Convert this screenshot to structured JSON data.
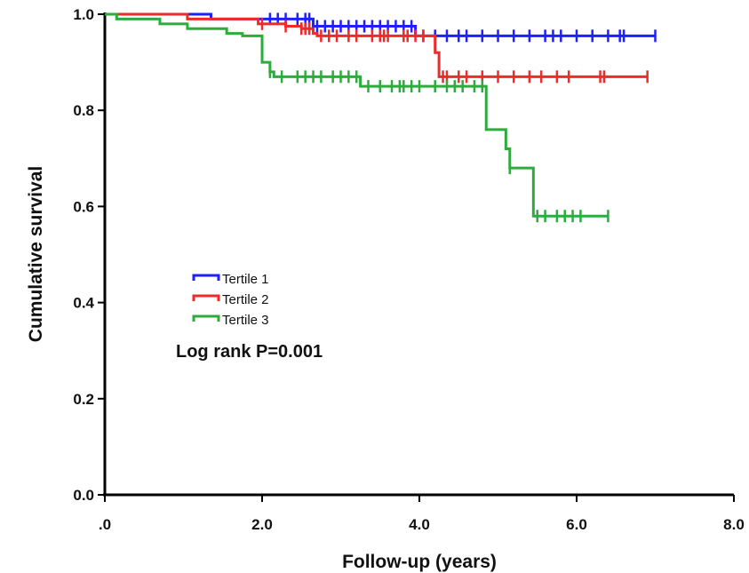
{
  "chart_data": {
    "type": "line",
    "subtype": "kaplan-meier step",
    "xlabel": "Follow-up (years)",
    "ylabel": "Cumulative survival",
    "xlim": [
      0,
      8
    ],
    "ylim": [
      0,
      1
    ],
    "xticks": [
      0,
      2,
      4,
      6,
      8
    ],
    "xtick_labels": [
      ".0",
      "2.0",
      "4.0",
      "6.0",
      "8.0"
    ],
    "yticks": [
      0,
      0.2,
      0.4,
      0.6,
      0.8,
      1.0
    ],
    "ytick_labels": [
      "0.0",
      "0.2",
      "0.4",
      "0.6",
      "0.8",
      "1.0"
    ],
    "grid": false,
    "legend_position": "middle-left",
    "annotation": "Log rank P=0.001",
    "series": [
      {
        "name": "Tertile 1",
        "color": "#1f1fff",
        "steps": [
          [
            0,
            1.0
          ],
          [
            1.35,
            0.99
          ],
          [
            2.65,
            0.975
          ],
          [
            3.95,
            0.955
          ],
          [
            7.0,
            0.955
          ]
        ],
        "censored": [
          2.1,
          2.2,
          2.3,
          2.45,
          2.55,
          2.6,
          2.65,
          2.7,
          2.8,
          2.9,
          3.0,
          3.1,
          3.2,
          3.3,
          3.4,
          3.5,
          3.6,
          3.7,
          3.8,
          3.9,
          4.05,
          4.2,
          4.35,
          4.5,
          4.6,
          4.8,
          5.0,
          5.2,
          5.4,
          5.6,
          5.7,
          5.8,
          6.0,
          6.2,
          6.4,
          6.55,
          6.6,
          7.0
        ]
      },
      {
        "name": "Tertile 2",
        "color": "#ee2a2a",
        "steps": [
          [
            0,
            1.0
          ],
          [
            1.05,
            0.99
          ],
          [
            1.95,
            0.98
          ],
          [
            2.3,
            0.975
          ],
          [
            2.5,
            0.97
          ],
          [
            2.65,
            0.96
          ],
          [
            2.7,
            0.955
          ],
          [
            4.2,
            0.92
          ],
          [
            4.25,
            0.87
          ],
          [
            6.9,
            0.87
          ]
        ],
        "censored": [
          2.0,
          2.3,
          2.5,
          2.55,
          2.6,
          2.75,
          2.85,
          2.95,
          3.1,
          3.2,
          3.4,
          3.5,
          3.55,
          3.6,
          3.8,
          3.85,
          3.95,
          4.05,
          4.3,
          4.35,
          4.5,
          4.6,
          4.8,
          5.0,
          5.2,
          5.4,
          5.55,
          5.75,
          5.9,
          6.3,
          6.35,
          6.9
        ]
      },
      {
        "name": "Tertile 3",
        "color": "#2dab3c",
        "steps": [
          [
            0,
            1.0
          ],
          [
            0.15,
            0.99
          ],
          [
            0.7,
            0.98
          ],
          [
            1.05,
            0.97
          ],
          [
            1.55,
            0.96
          ],
          [
            1.75,
            0.955
          ],
          [
            2.0,
            0.9
          ],
          [
            2.1,
            0.88
          ],
          [
            2.15,
            0.87
          ],
          [
            3.25,
            0.85
          ],
          [
            4.85,
            0.76
          ],
          [
            5.1,
            0.72
          ],
          [
            5.15,
            0.68
          ],
          [
            5.45,
            0.58
          ],
          [
            6.4,
            0.58
          ]
        ],
        "censored": [
          2.1,
          2.25,
          2.45,
          2.55,
          2.65,
          2.75,
          2.9,
          3.0,
          3.1,
          3.2,
          3.35,
          3.5,
          3.65,
          3.75,
          3.8,
          3.9,
          4.0,
          4.2,
          4.35,
          4.45,
          4.55,
          4.7,
          4.8,
          5.15,
          5.5,
          5.6,
          5.75,
          5.85,
          5.95,
          6.05,
          6.4
        ]
      }
    ]
  }
}
